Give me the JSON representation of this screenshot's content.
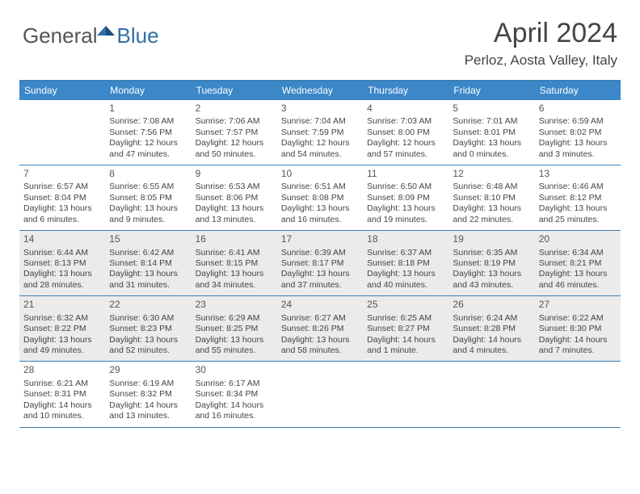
{
  "logo": {
    "general": "General",
    "blue": "Blue"
  },
  "title": "April 2024",
  "location": "Perloz, Aosta Valley, Italy",
  "colors": {
    "header_bg": "#3b87c7",
    "border": "#3b7fb8",
    "shade": "#ebebeb",
    "text": "#444444",
    "logo_gray": "#555555",
    "logo_blue": "#2f6fa8"
  },
  "weekdays": [
    "Sunday",
    "Monday",
    "Tuesday",
    "Wednesday",
    "Thursday",
    "Friday",
    "Saturday"
  ],
  "weeks": [
    {
      "shaded": false,
      "days": [
        {
          "n": "",
          "sr": "",
          "ss": "",
          "dl": ""
        },
        {
          "n": "1",
          "sr": "Sunrise: 7:08 AM",
          "ss": "Sunset: 7:56 PM",
          "dl": "Daylight: 12 hours and 47 minutes."
        },
        {
          "n": "2",
          "sr": "Sunrise: 7:06 AM",
          "ss": "Sunset: 7:57 PM",
          "dl": "Daylight: 12 hours and 50 minutes."
        },
        {
          "n": "3",
          "sr": "Sunrise: 7:04 AM",
          "ss": "Sunset: 7:59 PM",
          "dl": "Daylight: 12 hours and 54 minutes."
        },
        {
          "n": "4",
          "sr": "Sunrise: 7:03 AM",
          "ss": "Sunset: 8:00 PM",
          "dl": "Daylight: 12 hours and 57 minutes."
        },
        {
          "n": "5",
          "sr": "Sunrise: 7:01 AM",
          "ss": "Sunset: 8:01 PM",
          "dl": "Daylight: 13 hours and 0 minutes."
        },
        {
          "n": "6",
          "sr": "Sunrise: 6:59 AM",
          "ss": "Sunset: 8:02 PM",
          "dl": "Daylight: 13 hours and 3 minutes."
        }
      ]
    },
    {
      "shaded": false,
      "days": [
        {
          "n": "7",
          "sr": "Sunrise: 6:57 AM",
          "ss": "Sunset: 8:04 PM",
          "dl": "Daylight: 13 hours and 6 minutes."
        },
        {
          "n": "8",
          "sr": "Sunrise: 6:55 AM",
          "ss": "Sunset: 8:05 PM",
          "dl": "Daylight: 13 hours and 9 minutes."
        },
        {
          "n": "9",
          "sr": "Sunrise: 6:53 AM",
          "ss": "Sunset: 8:06 PM",
          "dl": "Daylight: 13 hours and 13 minutes."
        },
        {
          "n": "10",
          "sr": "Sunrise: 6:51 AM",
          "ss": "Sunset: 8:08 PM",
          "dl": "Daylight: 13 hours and 16 minutes."
        },
        {
          "n": "11",
          "sr": "Sunrise: 6:50 AM",
          "ss": "Sunset: 8:09 PM",
          "dl": "Daylight: 13 hours and 19 minutes."
        },
        {
          "n": "12",
          "sr": "Sunrise: 6:48 AM",
          "ss": "Sunset: 8:10 PM",
          "dl": "Daylight: 13 hours and 22 minutes."
        },
        {
          "n": "13",
          "sr": "Sunrise: 6:46 AM",
          "ss": "Sunset: 8:12 PM",
          "dl": "Daylight: 13 hours and 25 minutes."
        }
      ]
    },
    {
      "shaded": true,
      "days": [
        {
          "n": "14",
          "sr": "Sunrise: 6:44 AM",
          "ss": "Sunset: 8:13 PM",
          "dl": "Daylight: 13 hours and 28 minutes."
        },
        {
          "n": "15",
          "sr": "Sunrise: 6:42 AM",
          "ss": "Sunset: 8:14 PM",
          "dl": "Daylight: 13 hours and 31 minutes."
        },
        {
          "n": "16",
          "sr": "Sunrise: 6:41 AM",
          "ss": "Sunset: 8:15 PM",
          "dl": "Daylight: 13 hours and 34 minutes."
        },
        {
          "n": "17",
          "sr": "Sunrise: 6:39 AM",
          "ss": "Sunset: 8:17 PM",
          "dl": "Daylight: 13 hours and 37 minutes."
        },
        {
          "n": "18",
          "sr": "Sunrise: 6:37 AM",
          "ss": "Sunset: 8:18 PM",
          "dl": "Daylight: 13 hours and 40 minutes."
        },
        {
          "n": "19",
          "sr": "Sunrise: 6:35 AM",
          "ss": "Sunset: 8:19 PM",
          "dl": "Daylight: 13 hours and 43 minutes."
        },
        {
          "n": "20",
          "sr": "Sunrise: 6:34 AM",
          "ss": "Sunset: 8:21 PM",
          "dl": "Daylight: 13 hours and 46 minutes."
        }
      ]
    },
    {
      "shaded": true,
      "days": [
        {
          "n": "21",
          "sr": "Sunrise: 6:32 AM",
          "ss": "Sunset: 8:22 PM",
          "dl": "Daylight: 13 hours and 49 minutes."
        },
        {
          "n": "22",
          "sr": "Sunrise: 6:30 AM",
          "ss": "Sunset: 8:23 PM",
          "dl": "Daylight: 13 hours and 52 minutes."
        },
        {
          "n": "23",
          "sr": "Sunrise: 6:29 AM",
          "ss": "Sunset: 8:25 PM",
          "dl": "Daylight: 13 hours and 55 minutes."
        },
        {
          "n": "24",
          "sr": "Sunrise: 6:27 AM",
          "ss": "Sunset: 8:26 PM",
          "dl": "Daylight: 13 hours and 58 minutes."
        },
        {
          "n": "25",
          "sr": "Sunrise: 6:25 AM",
          "ss": "Sunset: 8:27 PM",
          "dl": "Daylight: 14 hours and 1 minute."
        },
        {
          "n": "26",
          "sr": "Sunrise: 6:24 AM",
          "ss": "Sunset: 8:28 PM",
          "dl": "Daylight: 14 hours and 4 minutes."
        },
        {
          "n": "27",
          "sr": "Sunrise: 6:22 AM",
          "ss": "Sunset: 8:30 PM",
          "dl": "Daylight: 14 hours and 7 minutes."
        }
      ]
    },
    {
      "shaded": false,
      "days": [
        {
          "n": "28",
          "sr": "Sunrise: 6:21 AM",
          "ss": "Sunset: 8:31 PM",
          "dl": "Daylight: 14 hours and 10 minutes."
        },
        {
          "n": "29",
          "sr": "Sunrise: 6:19 AM",
          "ss": "Sunset: 8:32 PM",
          "dl": "Daylight: 14 hours and 13 minutes."
        },
        {
          "n": "30",
          "sr": "Sunrise: 6:17 AM",
          "ss": "Sunset: 8:34 PM",
          "dl": "Daylight: 14 hours and 16 minutes."
        },
        {
          "n": "",
          "sr": "",
          "ss": "",
          "dl": ""
        },
        {
          "n": "",
          "sr": "",
          "ss": "",
          "dl": ""
        },
        {
          "n": "",
          "sr": "",
          "ss": "",
          "dl": ""
        },
        {
          "n": "",
          "sr": "",
          "ss": "",
          "dl": ""
        }
      ]
    }
  ]
}
